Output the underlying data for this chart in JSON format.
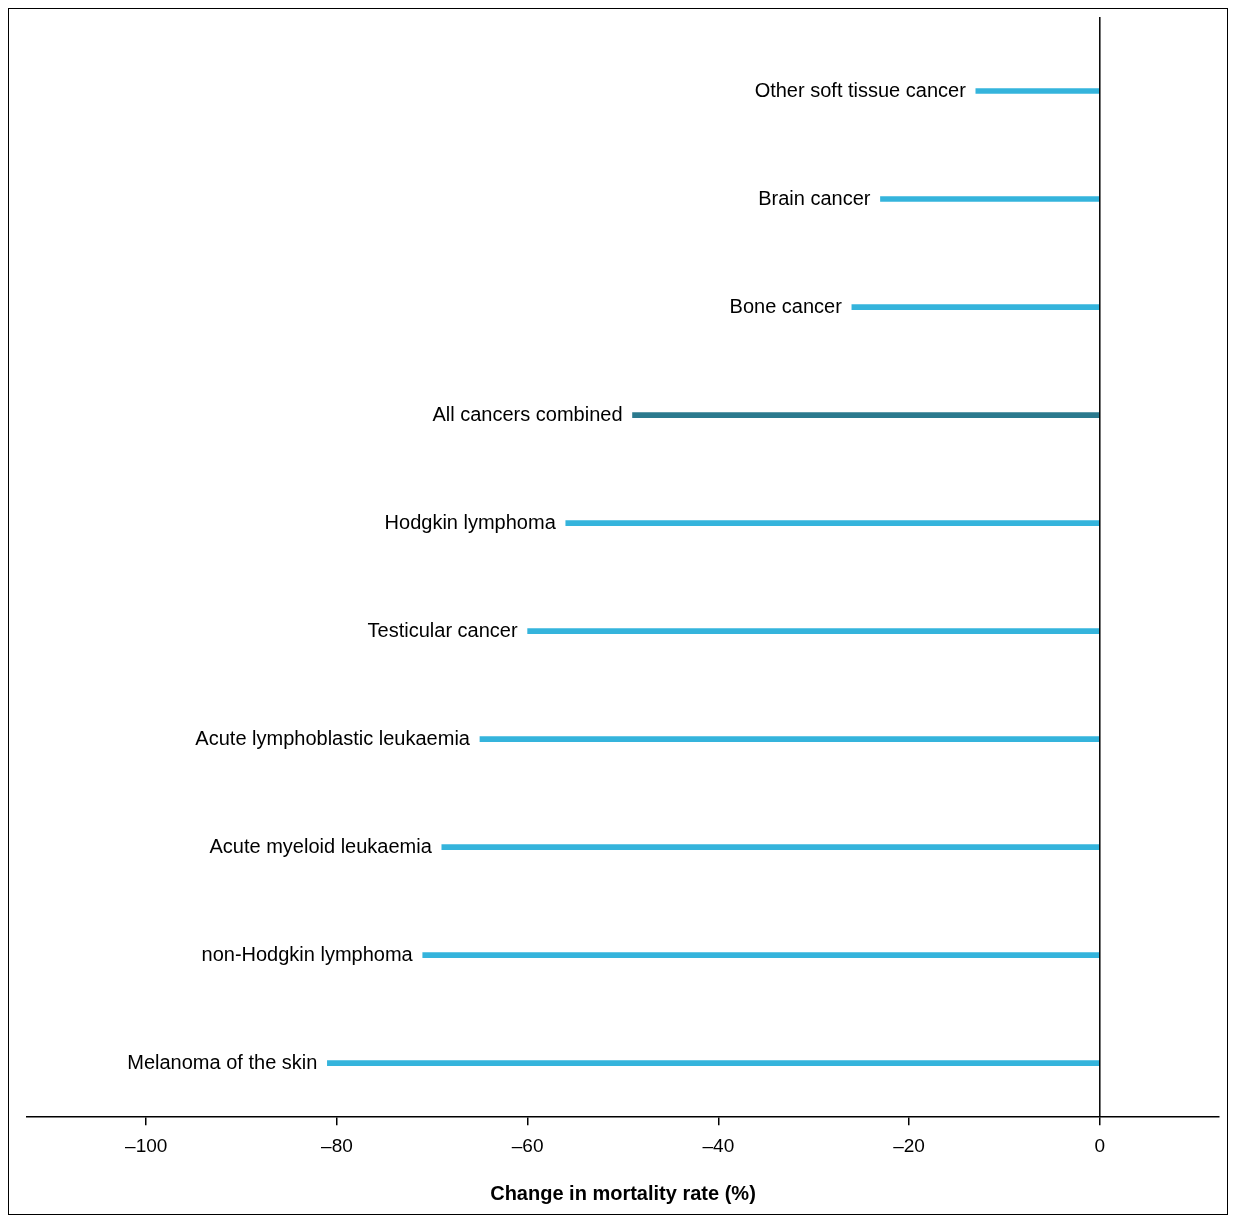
{
  "chart_data": {
    "type": "bar",
    "orientation": "horizontal",
    "xlabel": "Change in mortality rate (%)",
    "categories": [
      "Other soft tissue cancer",
      "Brain cancer",
      "Bone cancer",
      "All cancers combined",
      "Hodgkin lymphoma",
      "Testicular cancer",
      "Acute lymphoblastic leukaemia",
      "Acute myeloid leukaemia",
      "non-Hodgkin lymphoma",
      "Melanoma of the skin"
    ],
    "values": [
      -13,
      -23,
      -26,
      -49,
      -56,
      -60,
      -65,
      -69,
      -71,
      -81
    ],
    "colors": [
      "#35b4dc",
      "#35b4dc",
      "#35b4dc",
      "#2b7a8e",
      "#35b4dc",
      "#35b4dc",
      "#35b4dc",
      "#35b4dc",
      "#35b4dc",
      "#35b4dc"
    ],
    "xlim": [
      -112.5,
      12.5
    ],
    "xticks": [
      {
        "value": -100,
        "label": "–100"
      },
      {
        "value": -80,
        "label": "–80"
      },
      {
        "value": -60,
        "label": "–60"
      },
      {
        "value": -40,
        "label": "–40"
      },
      {
        "value": -20,
        "label": "–20"
      },
      {
        "value": 0,
        "label": "0"
      }
    ],
    "ref_lines": [
      {
        "axis": "x",
        "value": 0,
        "color": "#000000"
      }
    ],
    "grid": false,
    "legend": false
  }
}
